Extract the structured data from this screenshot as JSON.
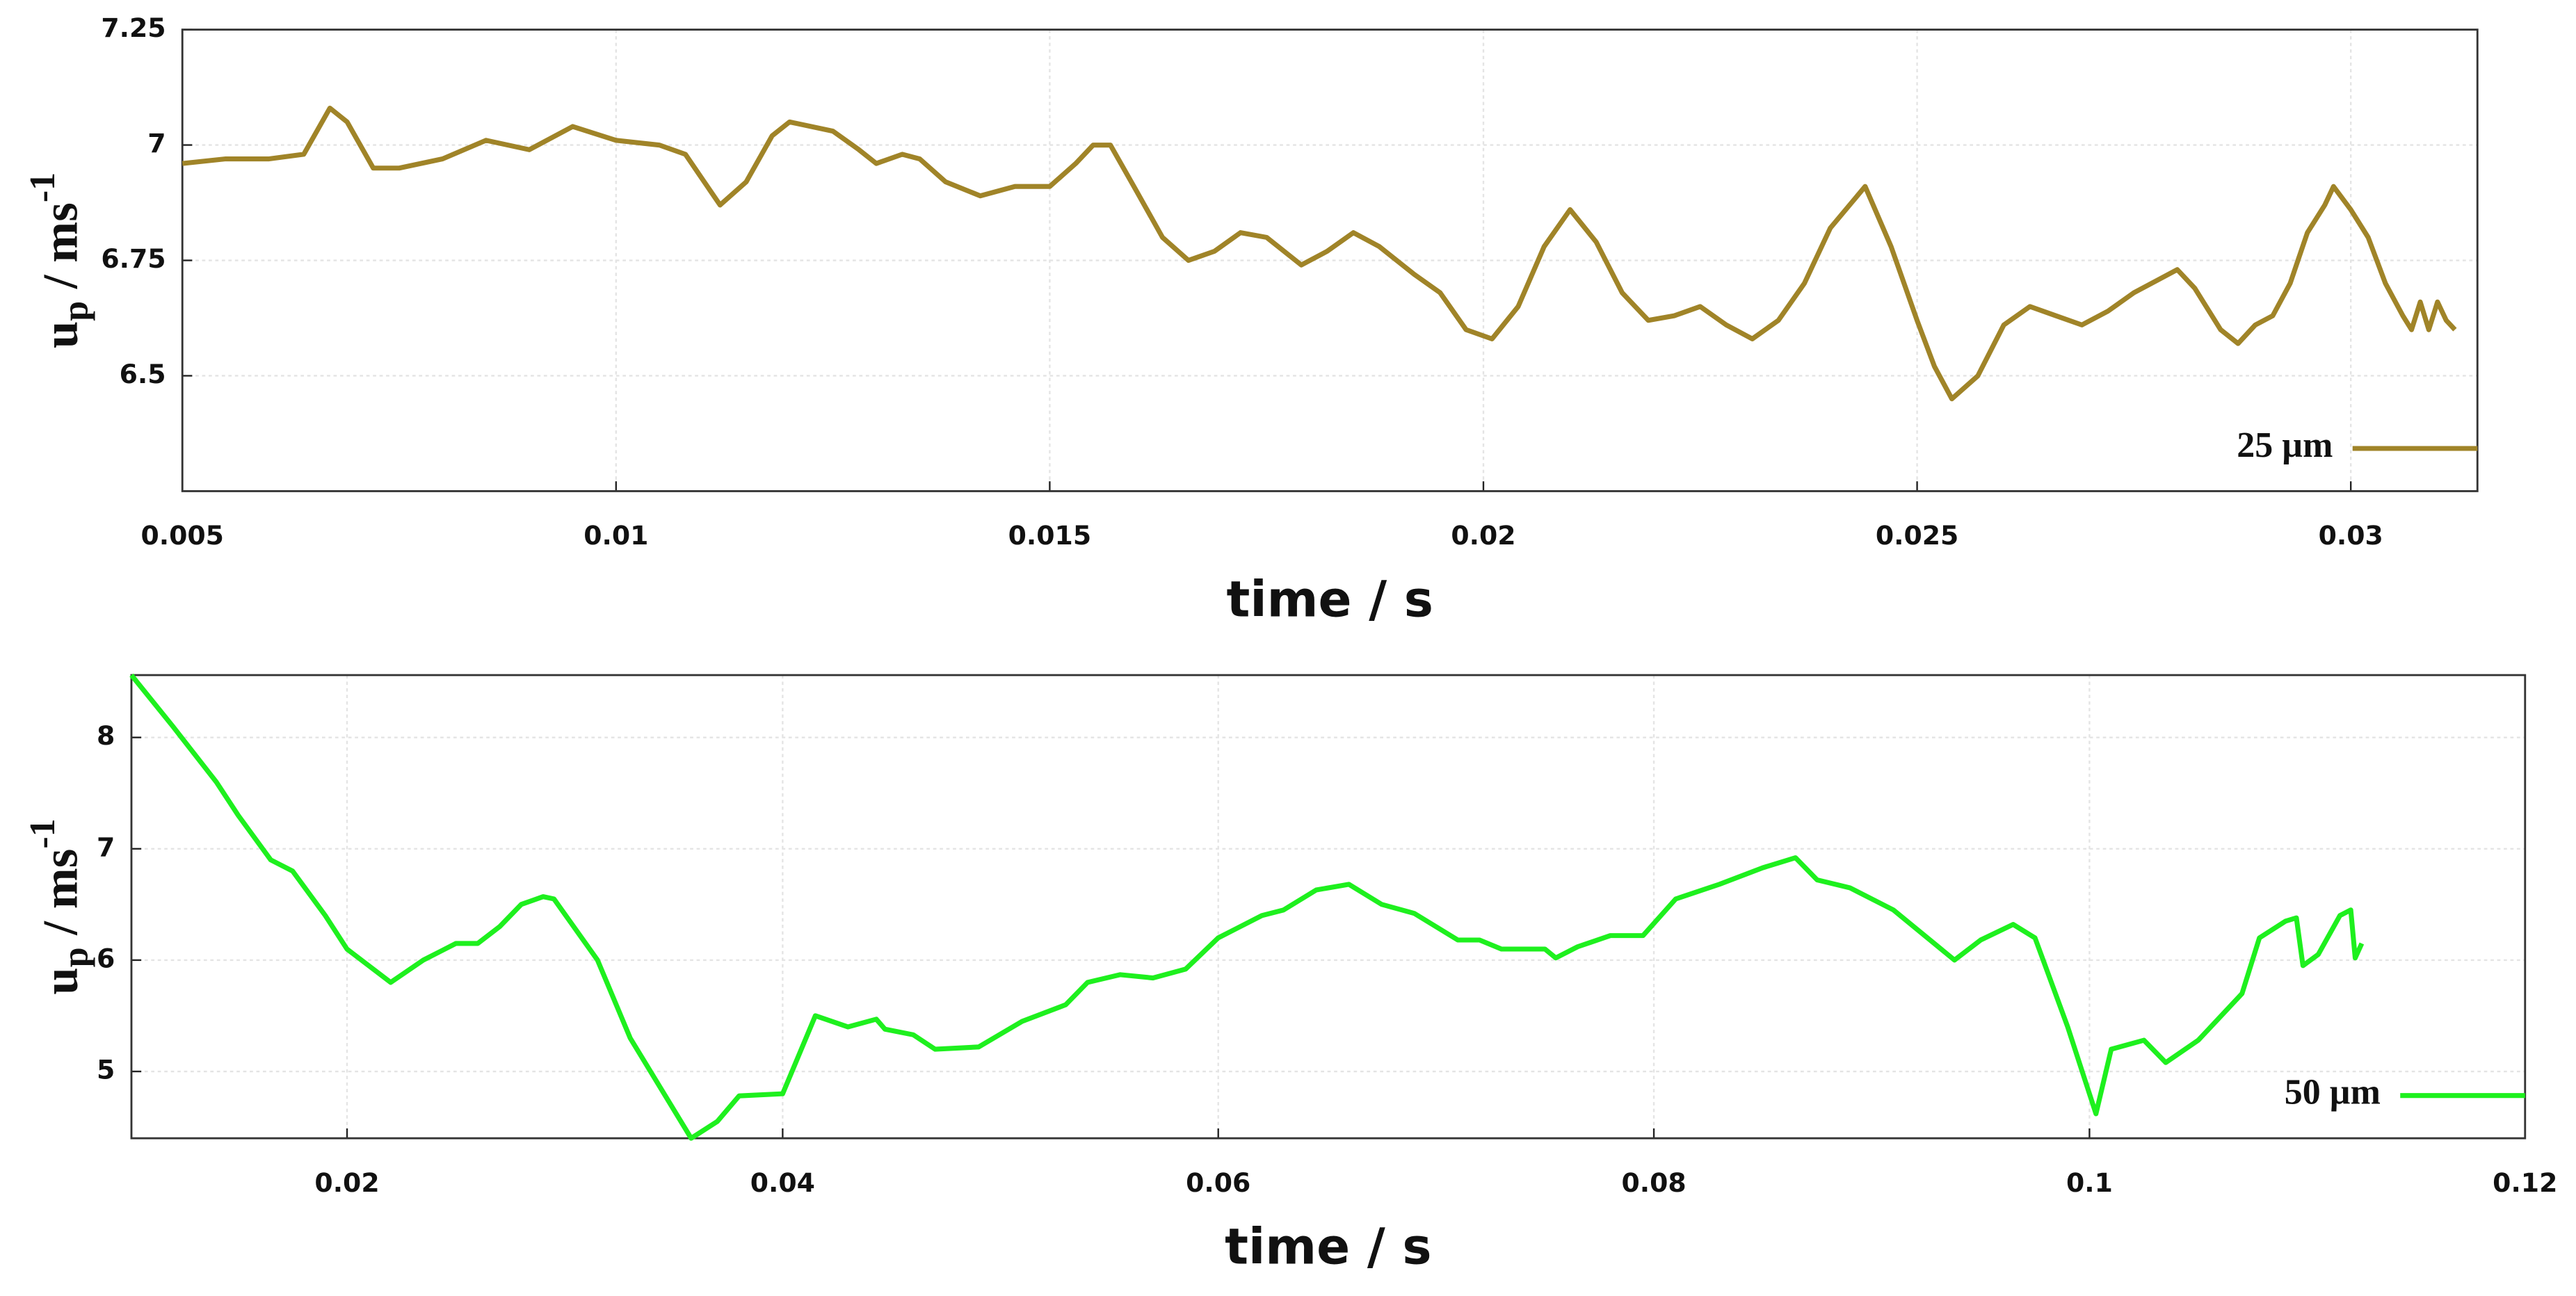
{
  "chart_data": [
    {
      "type": "line",
      "xlabel": "time / s",
      "ylabel": {
        "base": "u",
        "sub": "p",
        "unit": " / ms",
        "sup": "-1"
      },
      "xlim": [
        0.005,
        0.03146
      ],
      "ylim": [
        6.25,
        7.25
      ],
      "xticks": [
        0.005,
        0.01,
        0.015,
        0.02,
        0.025,
        0.03
      ],
      "yticks": [
        6.5,
        6.75,
        7,
        7.25
      ],
      "grid": true,
      "legend": "lower right",
      "x": [
        0.005,
        0.0055,
        0.006,
        0.0064,
        0.0067,
        0.0069,
        0.0072,
        0.0075,
        0.008,
        0.0085,
        0.009,
        0.0095,
        0.01,
        0.0105,
        0.0108,
        0.0112,
        0.0115,
        0.0118,
        0.012,
        0.0125,
        0.0128,
        0.013,
        0.0133,
        0.0135,
        0.0138,
        0.0142,
        0.0146,
        0.015,
        0.0153,
        0.0155,
        0.0157,
        0.016,
        0.0163,
        0.0166,
        0.0169,
        0.0172,
        0.0175,
        0.0179,
        0.0182,
        0.0185,
        0.0188,
        0.0192,
        0.0195,
        0.0198,
        0.0201,
        0.0204,
        0.0207,
        0.021,
        0.0213,
        0.0216,
        0.0219,
        0.0222,
        0.0225,
        0.0228,
        0.0231,
        0.0234,
        0.0237,
        0.024,
        0.0244,
        0.0247,
        0.025,
        0.0252,
        0.0254,
        0.0257,
        0.026,
        0.0263,
        0.0266,
        0.0269,
        0.0272,
        0.0275,
        0.0278,
        0.028,
        0.0282,
        0.0285,
        0.0287,
        0.0289,
        0.0291,
        0.0293,
        0.0295,
        0.0297,
        0.0298,
        0.03,
        0.0302,
        0.0304,
        0.0306,
        0.0307,
        0.0308,
        0.0309,
        0.031,
        0.0311,
        0.0312
      ],
      "series": [
        {
          "name": "25 µm",
          "color": "#a08428",
          "values": [
            6.96,
            6.97,
            6.97,
            6.98,
            7.08,
            7.05,
            6.95,
            6.95,
            6.97,
            7.01,
            6.99,
            7.04,
            7.01,
            7.0,
            6.98,
            6.87,
            6.92,
            7.02,
            7.05,
            7.03,
            6.99,
            6.96,
            6.98,
            6.97,
            6.92,
            6.89,
            6.91,
            6.91,
            6.96,
            7.0,
            7.0,
            6.9,
            6.8,
            6.75,
            6.77,
            6.81,
            6.8,
            6.74,
            6.77,
            6.81,
            6.78,
            6.72,
            6.68,
            6.6,
            6.58,
            6.65,
            6.78,
            6.86,
            6.79,
            6.68,
            6.62,
            6.63,
            6.65,
            6.61,
            6.58,
            6.62,
            6.7,
            6.82,
            6.91,
            6.78,
            6.62,
            6.52,
            6.45,
            6.5,
            6.61,
            6.65,
            6.63,
            6.61,
            6.64,
            6.68,
            6.71,
            6.73,
            6.69,
            6.6,
            6.57,
            6.61,
            6.63,
            6.7,
            6.81,
            6.87,
            6.91,
            6.86,
            6.8,
            6.7,
            6.63,
            6.6,
            6.66,
            6.6,
            6.66,
            6.62,
            6.6
          ]
        }
      ]
    },
    {
      "type": "line",
      "xlabel": "time / s",
      "ylabel": {
        "base": "u",
        "sub": "p",
        "unit": " / ms",
        "sup": "-1"
      },
      "xlim": [
        0.0101,
        0.12
      ],
      "ylim": [
        4.4,
        8.56
      ],
      "xticks": [
        0.02,
        0.04,
        0.06,
        0.08,
        0.1,
        0.12
      ],
      "yticks": [
        5,
        6,
        7,
        8
      ],
      "grid": true,
      "legend": "lower right",
      "x": [
        0.0101,
        0.012,
        0.014,
        0.015,
        0.0165,
        0.0175,
        0.019,
        0.02,
        0.022,
        0.0235,
        0.025,
        0.026,
        0.027,
        0.028,
        0.029,
        0.0295,
        0.0315,
        0.033,
        0.0358,
        0.037,
        0.038,
        0.04,
        0.0415,
        0.043,
        0.0443,
        0.0447,
        0.046,
        0.047,
        0.049,
        0.051,
        0.053,
        0.054,
        0.0555,
        0.057,
        0.0585,
        0.06,
        0.062,
        0.063,
        0.0645,
        0.066,
        0.0675,
        0.069,
        0.071,
        0.072,
        0.073,
        0.075,
        0.0755,
        0.0765,
        0.078,
        0.0795,
        0.081,
        0.083,
        0.085,
        0.0865,
        0.0875,
        0.089,
        0.091,
        0.0938,
        0.095,
        0.0965,
        0.0975,
        0.099,
        0.1003,
        0.101,
        0.1025,
        0.1035,
        0.105,
        0.107,
        0.1078,
        0.109,
        0.1095,
        0.1098,
        0.1105,
        0.1115,
        0.112,
        0.1122,
        0.1125
      ],
      "series": [
        {
          "name": "50 µm",
          "color": "#1ef01e",
          "values": [
            8.56,
            8.1,
            7.6,
            7.3,
            6.9,
            6.8,
            6.4,
            6.1,
            5.8,
            6.0,
            6.15,
            6.15,
            6.3,
            6.5,
            6.57,
            6.55,
            6.0,
            5.3,
            4.4,
            4.55,
            4.78,
            4.8,
            5.5,
            5.4,
            5.47,
            5.38,
            5.33,
            5.2,
            5.22,
            5.45,
            5.6,
            5.8,
            5.87,
            5.84,
            5.92,
            6.2,
            6.4,
            6.45,
            6.63,
            6.68,
            6.5,
            6.42,
            6.18,
            6.18,
            6.1,
            6.1,
            6.02,
            6.12,
            6.22,
            6.22,
            6.55,
            6.68,
            6.83,
            6.92,
            6.72,
            6.65,
            6.45,
            6.0,
            6.18,
            6.32,
            6.2,
            5.4,
            4.62,
            5.2,
            5.28,
            5.08,
            5.28,
            5.7,
            6.2,
            6.35,
            6.38,
            5.95,
            6.05,
            6.4,
            6.45,
            6.02,
            6.15
          ]
        }
      ]
    }
  ]
}
